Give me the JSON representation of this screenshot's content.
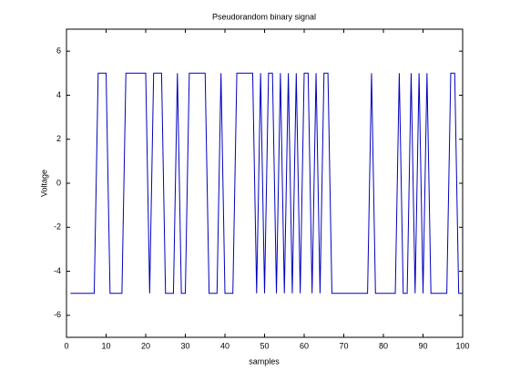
{
  "chart_data": {
    "type": "line",
    "title": "Pseudorandom binary signal",
    "x_label": "samples",
    "y_label": "Voltage",
    "x": [
      1,
      2,
      3,
      4,
      5,
      6,
      7,
      8,
      9,
      10,
      11,
      12,
      13,
      14,
      15,
      16,
      17,
      18,
      19,
      20,
      21,
      22,
      23,
      24,
      25,
      26,
      27,
      28,
      29,
      30,
      31,
      32,
      33,
      34,
      35,
      36,
      37,
      38,
      39,
      40,
      41,
      42,
      43,
      44,
      45,
      46,
      47,
      48,
      49,
      50,
      51,
      52,
      53,
      54,
      55,
      56,
      57,
      58,
      59,
      60,
      61,
      62,
      63,
      64,
      65,
      66,
      67,
      68,
      69,
      70,
      71,
      72,
      73,
      74,
      75,
      76,
      77,
      78,
      79,
      80,
      81,
      82,
      83,
      84,
      85,
      86,
      87,
      88,
      89,
      90,
      91,
      92,
      93,
      94,
      95,
      96,
      97,
      98,
      99,
      100
    ],
    "series": [
      {
        "color": "#0000bf",
        "values": [
          -5,
          -5,
          -5,
          -5,
          -5,
          -5,
          -5,
          5,
          5,
          5,
          -5,
          -5,
          -5,
          -5,
          5,
          5,
          5,
          5,
          5,
          5,
          -5,
          5,
          5,
          5,
          -5,
          -5,
          -5,
          5,
          -5,
          -5,
          5,
          5,
          5,
          5,
          5,
          -5,
          -5,
          -5,
          5,
          -5,
          -5,
          -5,
          5,
          5,
          5,
          5,
          5,
          -5,
          5,
          -5,
          5,
          5,
          -5,
          5,
          -5,
          5,
          -5,
          5,
          -5,
          5,
          5,
          -5,
          5,
          -5,
          5,
          5,
          -5,
          -5,
          -5,
          -5,
          -5,
          -5,
          -5,
          -5,
          -5,
          -5,
          5,
          -5,
          -5,
          -5,
          -5,
          -5,
          -5,
          5,
          -5,
          -5,
          5,
          -5,
          5,
          -5,
          5,
          -5,
          -5,
          -5,
          -5,
          -5,
          5,
          5,
          -5,
          -5
        ]
      }
    ],
    "xlim": [
      0,
      100
    ],
    "xticks": [
      0,
      10,
      20,
      30,
      40,
      50,
      60,
      70,
      80,
      90,
      100
    ],
    "ylim": [
      -7,
      7
    ],
    "yticks": [
      -6,
      -4,
      -2,
      0,
      2,
      4,
      6
    ]
  }
}
